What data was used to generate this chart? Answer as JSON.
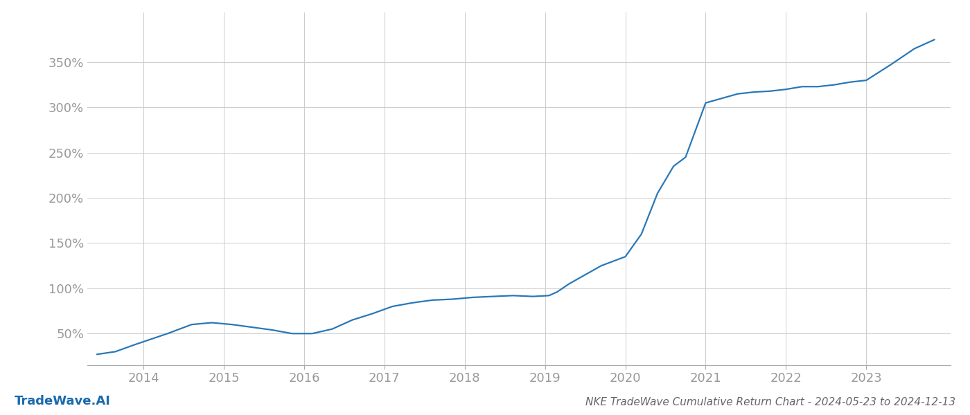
{
  "title": "NKE TradeWave Cumulative Return Chart - 2024-05-23 to 2024-12-13",
  "watermark": "TradeWave.AI",
  "line_color": "#2878b8",
  "line_width": 1.6,
  "background_color": "#ffffff",
  "grid_color": "#cccccc",
  "x_years": [
    2014,
    2015,
    2016,
    2017,
    2018,
    2019,
    2020,
    2021,
    2022,
    2023
  ],
  "x_data": [
    2013.42,
    2013.65,
    2013.9,
    2014.3,
    2014.6,
    2014.85,
    2015.1,
    2015.35,
    2015.6,
    2015.85,
    2016.1,
    2016.35,
    2016.6,
    2016.85,
    2017.1,
    2017.35,
    2017.6,
    2017.85,
    2018.1,
    2018.35,
    2018.6,
    2018.85,
    2019.05,
    2019.15,
    2019.3,
    2019.5,
    2019.7,
    2019.85,
    2020.0,
    2020.2,
    2020.4,
    2020.6,
    2020.75,
    2021.0,
    2021.2,
    2021.4,
    2021.6,
    2021.8,
    2022.0,
    2022.2,
    2022.4,
    2022.6,
    2022.8,
    2023.0,
    2023.3,
    2023.6,
    2023.85
  ],
  "y_data": [
    27,
    30,
    38,
    50,
    60,
    62,
    60,
    57,
    54,
    50,
    50,
    55,
    65,
    72,
    80,
    84,
    87,
    88,
    90,
    91,
    92,
    91,
    92,
    96,
    105,
    115,
    125,
    130,
    135,
    160,
    205,
    235,
    245,
    305,
    310,
    315,
    317,
    318,
    320,
    323,
    323,
    325,
    328,
    330,
    347,
    365,
    375
  ],
  "yticks": [
    50,
    100,
    150,
    200,
    250,
    300,
    350
  ],
  "ylim": [
    15,
    405
  ],
  "xlim": [
    2013.3,
    2024.05
  ],
  "tick_label_color": "#999999",
  "title_color": "#666666",
  "watermark_color": "#1a6aad",
  "title_fontsize": 11,
  "watermark_fontsize": 13,
  "tick_fontsize": 13
}
